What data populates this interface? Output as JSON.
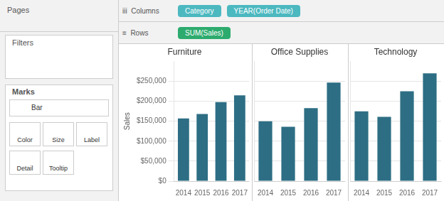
{
  "chart_data": [
    {
      "type": "bar",
      "title": "Furniture",
      "categories": [
        "2014",
        "2015",
        "2016",
        "2017"
      ],
      "values": [
        157000,
        168000,
        198000,
        215000
      ],
      "color": "#2d6e84",
      "ylabel": "Sales",
      "ylim": [
        0,
        300000
      ],
      "yticks": [
        {
          "value": 0,
          "label": "$0"
        },
        {
          "value": 50000,
          "label": "$50,000"
        },
        {
          "value": 100000,
          "label": "$100,000"
        },
        {
          "value": 150000,
          "label": "$150,000"
        },
        {
          "value": 200000,
          "label": "$200,000"
        },
        {
          "value": 250000,
          "label": "$250,000"
        }
      ],
      "grid": true,
      "annotations": [
        "Pages",
        "Filters",
        "Marks",
        "Bar",
        "Color",
        "Size",
        "Label",
        "Detail",
        "Tooltip",
        "iii  Columns",
        "Category",
        "YEAR(Order Date)",
        "≡  Rows",
        "SUM(Sales)"
      ]
    },
    {
      "type": "bar",
      "title": "Office Supplies",
      "categories": [
        "2014",
        "2015",
        "2016",
        "2017"
      ],
      "values": [
        150000,
        136000,
        183000,
        247000
      ],
      "color": "#2d6e84",
      "ylim": [
        0,
        300000
      ],
      "yticks": [
        {
          "value": 0,
          "label": "$0"
        },
        {
          "value": 50000,
          "label": "$50,000"
        },
        {
          "value": 100000,
          "label": "$100,000"
        },
        {
          "value": 150000,
          "label": "$150,000"
        },
        {
          "value": 200000,
          "label": "$200,000"
        },
        {
          "value": 250000,
          "label": "$250,000"
        }
      ],
      "grid": true,
      "tick_labels": "x"
    },
    {
      "type": "bar",
      "title": "Technology",
      "categories": [
        "2014",
        "2015",
        "2016",
        "2017"
      ],
      "values": [
        175000,
        161000,
        225000,
        270000
      ],
      "color": "#2d6e84",
      "ylim": [
        0,
        300000
      ],
      "yticks": [
        {
          "value": 0,
          "label": "$0"
        },
        {
          "value": 50000,
          "label": "$50,000"
        },
        {
          "value": 100000,
          "label": "$100,000"
        },
        {
          "value": 150000,
          "label": "$150,000"
        },
        {
          "value": 200000,
          "label": "$200,000"
        },
        {
          "value": 250000,
          "label": "$250,000"
        }
      ],
      "grid": true,
      "tick_labels": "x"
    }
  ]
}
